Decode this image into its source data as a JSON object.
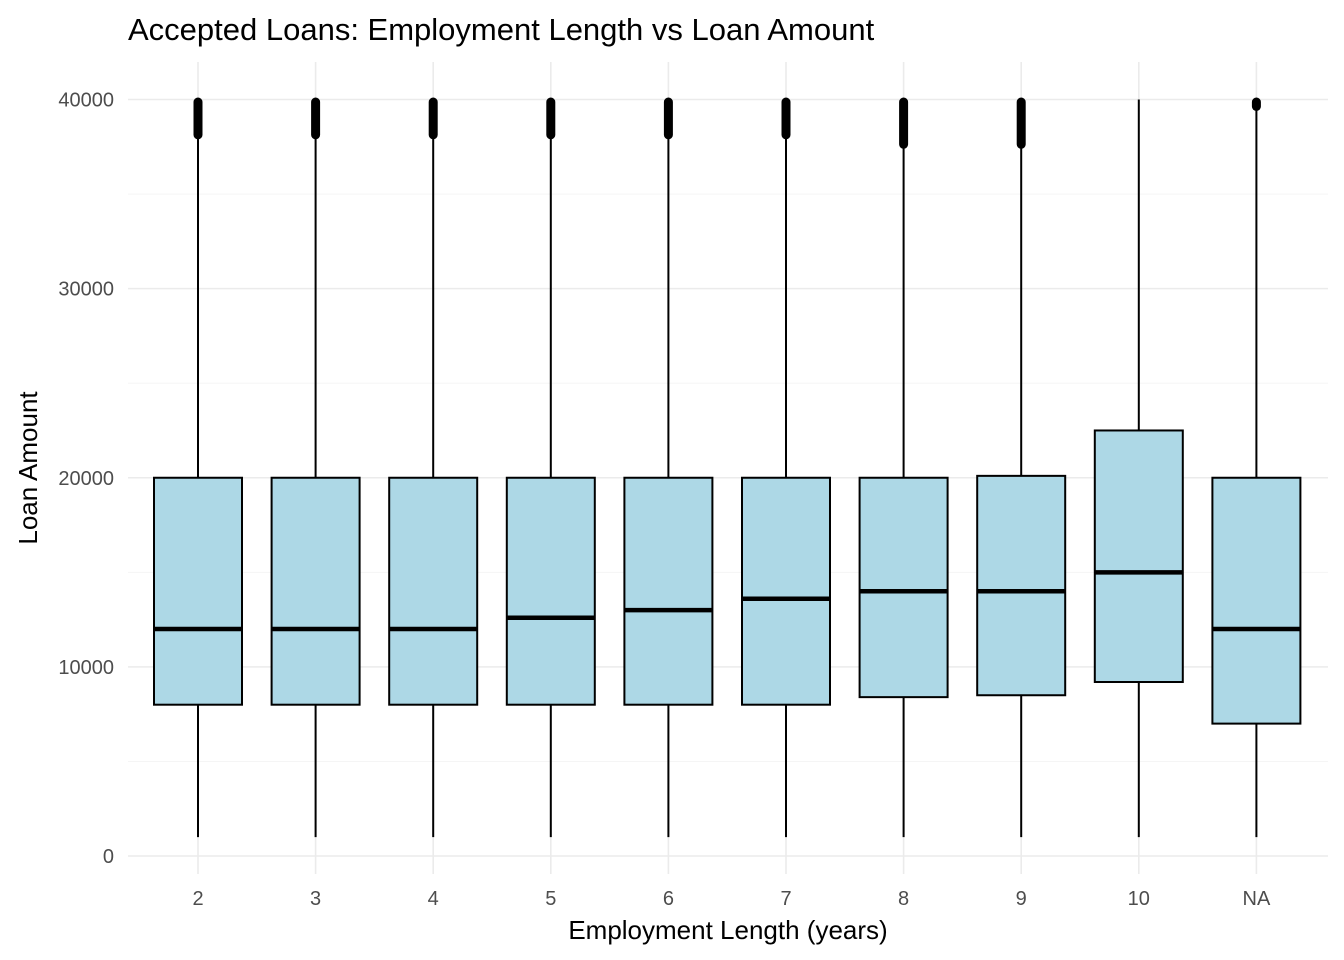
{
  "chart_data": {
    "type": "boxplot",
    "title": "Accepted Loans: Employment Length vs Loan Amount",
    "xlabel": "Employment Length (years)",
    "ylabel": "Loan Amount",
    "categories": [
      "2",
      "3",
      "4",
      "5",
      "6",
      "7",
      "8",
      "9",
      "10",
      "NA"
    ],
    "yticks": [
      0,
      10000,
      20000,
      30000,
      40000
    ],
    "ylim": [
      -1000,
      42000
    ],
    "grid": true,
    "legend": "none",
    "boxes": [
      {
        "category": "2",
        "whisker_low": 1000,
        "q1": 8000,
        "median": 12000,
        "q3": 20000,
        "whisker_high": 38000,
        "outliers_range": [
          38000,
          40000
        ]
      },
      {
        "category": "3",
        "whisker_low": 1000,
        "q1": 8000,
        "median": 12000,
        "q3": 20000,
        "whisker_high": 38000,
        "outliers_range": [
          38000,
          40000
        ]
      },
      {
        "category": "4",
        "whisker_low": 1000,
        "q1": 8000,
        "median": 12000,
        "q3": 20000,
        "whisker_high": 38000,
        "outliers_range": [
          38000,
          40000
        ]
      },
      {
        "category": "5",
        "whisker_low": 1000,
        "q1": 8000,
        "median": 12600,
        "q3": 20000,
        "whisker_high": 38000,
        "outliers_range": [
          38000,
          40000
        ]
      },
      {
        "category": "6",
        "whisker_low": 1000,
        "q1": 8000,
        "median": 13000,
        "q3": 20000,
        "whisker_high": 38000,
        "outliers_range": [
          38000,
          40000
        ]
      },
      {
        "category": "7",
        "whisker_low": 1000,
        "q1": 8000,
        "median": 13600,
        "q3": 20000,
        "whisker_high": 38000,
        "outliers_range": [
          38000,
          40000
        ]
      },
      {
        "category": "8",
        "whisker_low": 1000,
        "q1": 8400,
        "median": 14000,
        "q3": 20000,
        "whisker_high": 37500,
        "outliers_range": [
          37500,
          40000
        ]
      },
      {
        "category": "9",
        "whisker_low": 1000,
        "q1": 8500,
        "median": 14000,
        "q3": 20100,
        "whisker_high": 37500,
        "outliers_range": [
          37500,
          40000
        ]
      },
      {
        "category": "10",
        "whisker_low": 1000,
        "q1": 9200,
        "median": 15000,
        "q3": 22500,
        "whisker_high": 40000,
        "outliers_range": []
      },
      {
        "category": "NA",
        "whisker_low": 1000,
        "q1": 7000,
        "median": 12000,
        "q3": 20000,
        "whisker_high": 39500,
        "outliers_range": [
          39500,
          40000
        ]
      }
    ],
    "colors": {
      "box_fill": "#add8e6",
      "box_stroke": "#000000",
      "grid_major": "#ebebeb",
      "grid_minor": "#f5f5f5",
      "tick_text": "#4d4d4d"
    }
  }
}
